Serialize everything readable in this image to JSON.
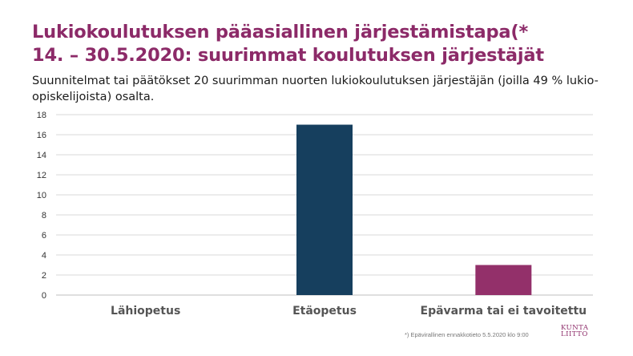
{
  "header": {
    "title_line1": "Lukiokoulutuksen pääasiallinen järjestämistapa(*",
    "title_line2": "14. – 30.5.2020: suurimmat koulutuksen järjestäjät",
    "subtitle": "Suunnitelmat tai päätökset 20 suurimman nuorten lukiokoulutuksen järjestäjän (joilla 49 % lukio-opiskelijoista) osalta."
  },
  "chart_data": {
    "type": "bar",
    "title": "",
    "xlabel": "",
    "ylabel": "",
    "categories": [
      "Lähiopetus",
      "Etäopetus",
      "Epävarma tai ei tavoitettu"
    ],
    "values": [
      0,
      17,
      3
    ],
    "bar_colors": [
      "#163f5e",
      "#163f5e",
      "#93306a"
    ],
    "ylim": [
      0,
      18
    ],
    "yticks": [
      0,
      2,
      4,
      6,
      8,
      10,
      12,
      14,
      16,
      18
    ],
    "grid": true,
    "legend": "none"
  },
  "footer": {
    "footnote": "*) Epävirallinen ennakkotieto 5.5.2020 klo 9:00",
    "logo_line1": "KUNTA",
    "logo_line2": "LIITTO",
    "logo_color": "#8c2a68"
  }
}
